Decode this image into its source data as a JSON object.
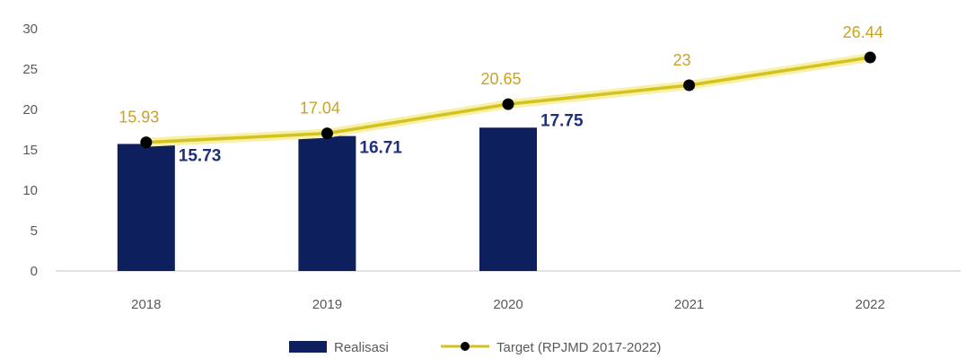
{
  "chart_data": {
    "type": "bar",
    "categories": [
      "2018",
      "2019",
      "2020",
      "2021",
      "2022"
    ],
    "y_ticks": [
      "0",
      "5",
      "10",
      "15",
      "20",
      "25",
      "30"
    ],
    "ylim": [
      0,
      30
    ],
    "grid": false,
    "legend_position": "bottom",
    "series": [
      {
        "name": "Realisasi",
        "kind": "bar",
        "color": "#0d1f5c",
        "label_color": "#1f2f7a",
        "values": [
          15.73,
          16.71,
          17.75,
          null,
          null
        ],
        "labels": [
          "15.73",
          "16.71",
          "17.75",
          "",
          ""
        ]
      },
      {
        "name": "Target (RPJMD 2017-2022)",
        "kind": "line",
        "color": "#d4c21f",
        "marker_color": "#000000",
        "label_color": "#c9a227",
        "values": [
          15.93,
          17.04,
          20.65,
          23,
          26.44
        ],
        "labels": [
          "15.93",
          "17.04",
          "20.65",
          "23",
          "26.44"
        ]
      }
    ]
  }
}
